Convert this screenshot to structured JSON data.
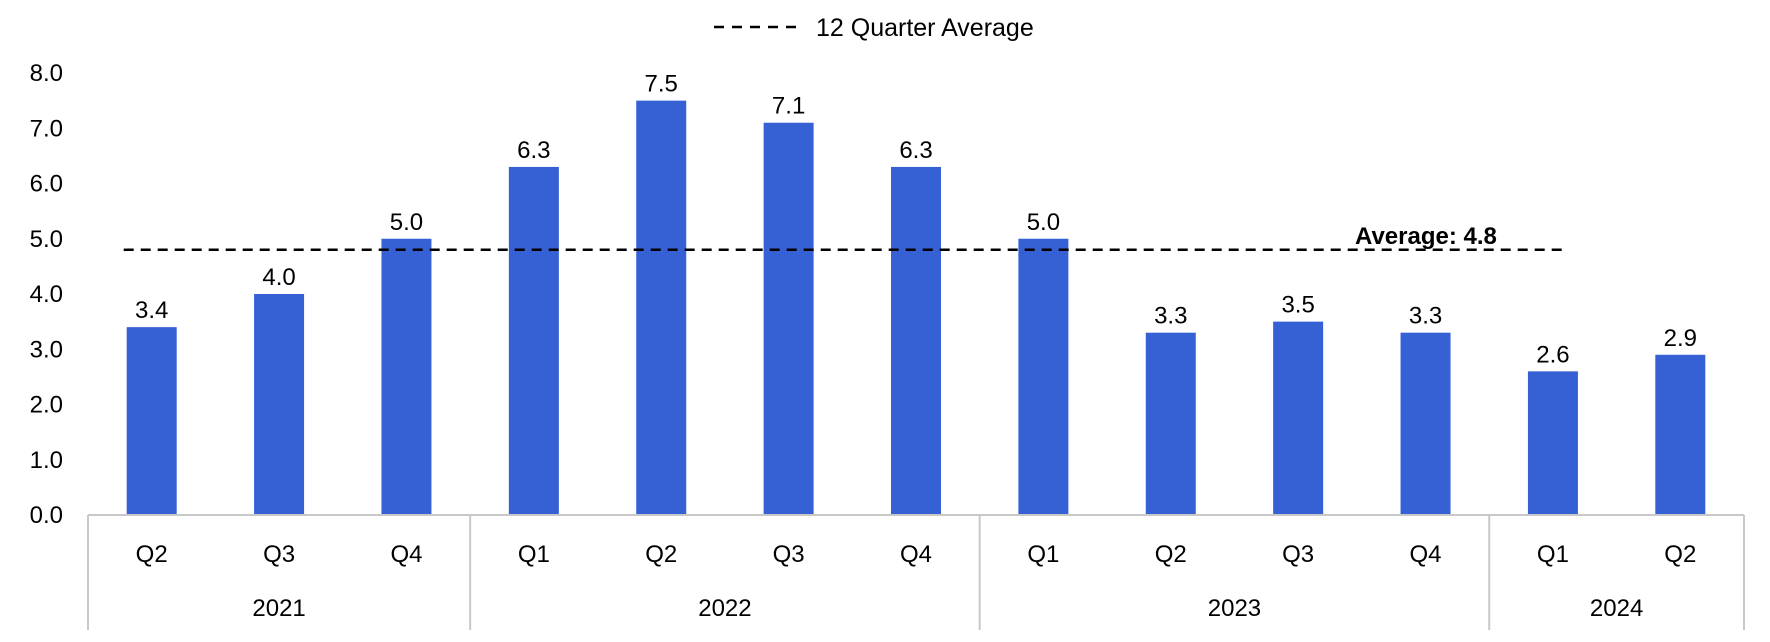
{
  "chart_data": {
    "type": "bar",
    "categories": [
      "Q2",
      "Q3",
      "Q4",
      "Q1",
      "Q2",
      "Q3",
      "Q4",
      "Q1",
      "Q2",
      "Q3",
      "Q4",
      "Q1",
      "Q2"
    ],
    "groups": [
      {
        "label": "2021",
        "count": 3
      },
      {
        "label": "2022",
        "count": 4
      },
      {
        "label": "2023",
        "count": 4
      },
      {
        "label": "2024",
        "count": 2
      }
    ],
    "values": [
      3.4,
      4.0,
      5.0,
      6.3,
      7.5,
      7.1,
      6.3,
      5.0,
      3.3,
      3.5,
      3.3,
      2.6,
      2.9
    ],
    "data_labels": [
      "3.4",
      "4.0",
      "5.0",
      "6.3",
      "7.5",
      "7.1",
      "6.3",
      "5.0",
      "3.3",
      "3.5",
      "3.3",
      "2.6",
      "2.9"
    ],
    "ylim": [
      0,
      8
    ],
    "yticks": [
      0,
      1,
      2,
      3,
      4,
      5,
      6,
      7,
      8
    ],
    "ytick_labels": [
      "0.0",
      "1.0",
      "2.0",
      "3.0",
      "4.0",
      "5.0",
      "6.0",
      "7.0",
      "8.0"
    ],
    "average": {
      "value": 4.8,
      "label": "Average: 4.8",
      "legend": "12 Quarter Average"
    },
    "bar_color": "#3661D4",
    "legend_position": "top-center",
    "grid": false
  }
}
